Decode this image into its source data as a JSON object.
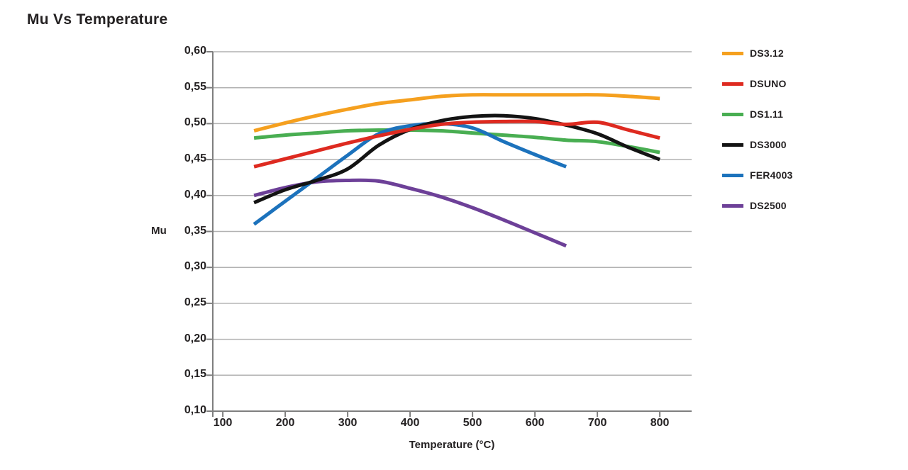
{
  "page_title": "Mu Vs Temperature",
  "styles": {
    "background": "#FFFFFF",
    "text_color": "#242122",
    "grid_color": "#B2B2B2",
    "axis_color": "#7F7F7F"
  },
  "chart_data": {
    "type": "line",
    "title": "Mu Vs Temperature",
    "xlabel": "Temperature (°C)",
    "ylabel": "Mu",
    "xlim": [
      84,
      851
    ],
    "ylim": [
      0.1,
      0.6
    ],
    "grid": "horizontal",
    "legend_position": "right",
    "decimal_separator": ",",
    "x_tick_values": [
      100,
      200,
      300,
      400,
      500,
      600,
      700,
      800
    ],
    "x_tick_labels": [
      "100",
      "200",
      "300",
      "400",
      "500",
      "600",
      "700",
      "800"
    ],
    "y_tick_values": [
      0.6,
      0.55,
      0.5,
      0.45,
      0.4,
      0.35,
      0.3,
      0.25,
      0.2,
      0.15,
      0.1
    ],
    "y_tick_labels": [
      "0,60",
      "0,55",
      "0,50",
      "0,45",
      "0,40",
      "0,35",
      "0,30",
      "0,25",
      "0,20",
      "0,15",
      "0,10"
    ],
    "series": [
      {
        "name": "DS3.12",
        "color": "#F5A01F",
        "x": [
          150,
          200,
          250,
          300,
          350,
          400,
          450,
          500,
          550,
          600,
          650,
          700,
          750,
          800
        ],
        "values": [
          0.49,
          0.501,
          0.511,
          0.52,
          0.528,
          0.533,
          0.538,
          0.54,
          0.54,
          0.54,
          0.54,
          0.54,
          0.538,
          0.535
        ]
      },
      {
        "name": "DSUNO",
        "color": "#DE2A20",
        "x": [
          150,
          200,
          250,
          300,
          350,
          400,
          450,
          500,
          550,
          600,
          650,
          700,
          750,
          800
        ],
        "values": [
          0.44,
          0.451,
          0.462,
          0.473,
          0.483,
          0.492,
          0.499,
          0.502,
          0.503,
          0.503,
          0.499,
          0.502,
          0.491,
          0.48
        ]
      },
      {
        "name": "DS1.11",
        "color": "#49AE52",
        "x": [
          150,
          200,
          250,
          300,
          350,
          400,
          450,
          500,
          550,
          600,
          650,
          700,
          750,
          800
        ],
        "values": [
          0.48,
          0.484,
          0.487,
          0.49,
          0.491,
          0.491,
          0.49,
          0.487,
          0.484,
          0.481,
          0.477,
          0.475,
          0.468,
          0.46
        ]
      },
      {
        "name": "DS3000",
        "color": "#131313",
        "x": [
          150,
          200,
          250,
          300,
          350,
          400,
          450,
          500,
          550,
          600,
          650,
          700,
          750,
          800
        ],
        "values": [
          0.39,
          0.408,
          0.421,
          0.437,
          0.47,
          0.492,
          0.504,
          0.51,
          0.511,
          0.507,
          0.498,
          0.486,
          0.467,
          0.45
        ]
      },
      {
        "name": "FER4003",
        "color": "#1C72BC",
        "x": [
          150,
          200,
          250,
          300,
          350,
          400,
          450,
          500,
          550,
          600,
          650
        ],
        "values": [
          0.36,
          0.392,
          0.424,
          0.456,
          0.486,
          0.497,
          0.5,
          0.494,
          0.475,
          0.457,
          0.44
        ]
      },
      {
        "name": "DS2500",
        "color": "#6D4098",
        "x": [
          150,
          200,
          250,
          300,
          350,
          400,
          450,
          500,
          550,
          600,
          650
        ],
        "values": [
          0.4,
          0.411,
          0.419,
          0.421,
          0.42,
          0.41,
          0.398,
          0.383,
          0.366,
          0.348,
          0.33
        ]
      }
    ]
  }
}
